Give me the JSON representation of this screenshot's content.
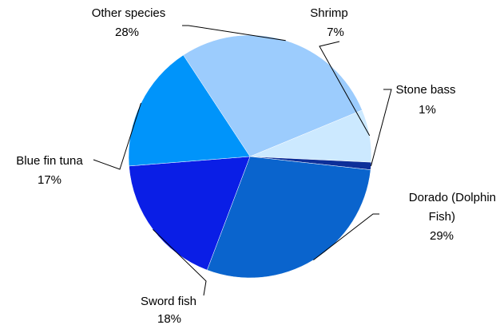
{
  "chart_data": {
    "type": "pie",
    "title": "",
    "start_angle_deg": 67.5,
    "direction": "clockwise",
    "slices": [
      {
        "label": "Shrimp",
        "label_lines": [
          "Shrimp"
        ],
        "percent_label": "7%",
        "value": 7,
        "color": "#cce9ff"
      },
      {
        "label": "Stone bass",
        "label_lines": [
          "Stone bass"
        ],
        "percent_label": "1%",
        "value": 1,
        "color": "#0d2f99"
      },
      {
        "label": "Dorado (Dolphin Fish)",
        "label_lines": [
          "Dorado (Dolphin",
          "Fish)"
        ],
        "percent_label": "29%",
        "value": 29,
        "color": "#0a64cd"
      },
      {
        "label": "Sword fish",
        "label_lines": [
          "Sword fish"
        ],
        "percent_label": "18%",
        "value": 18,
        "color": "#0a1ee6"
      },
      {
        "label": "Blue fin tuna",
        "label_lines": [
          "Blue fin tuna"
        ],
        "percent_label": "17%",
        "value": 17,
        "color": "#0094fa"
      },
      {
        "label": "Other species",
        "label_lines": [
          "Other species"
        ],
        "percent_label": "28%",
        "value": 28,
        "color": "#9cccfd"
      }
    ]
  }
}
